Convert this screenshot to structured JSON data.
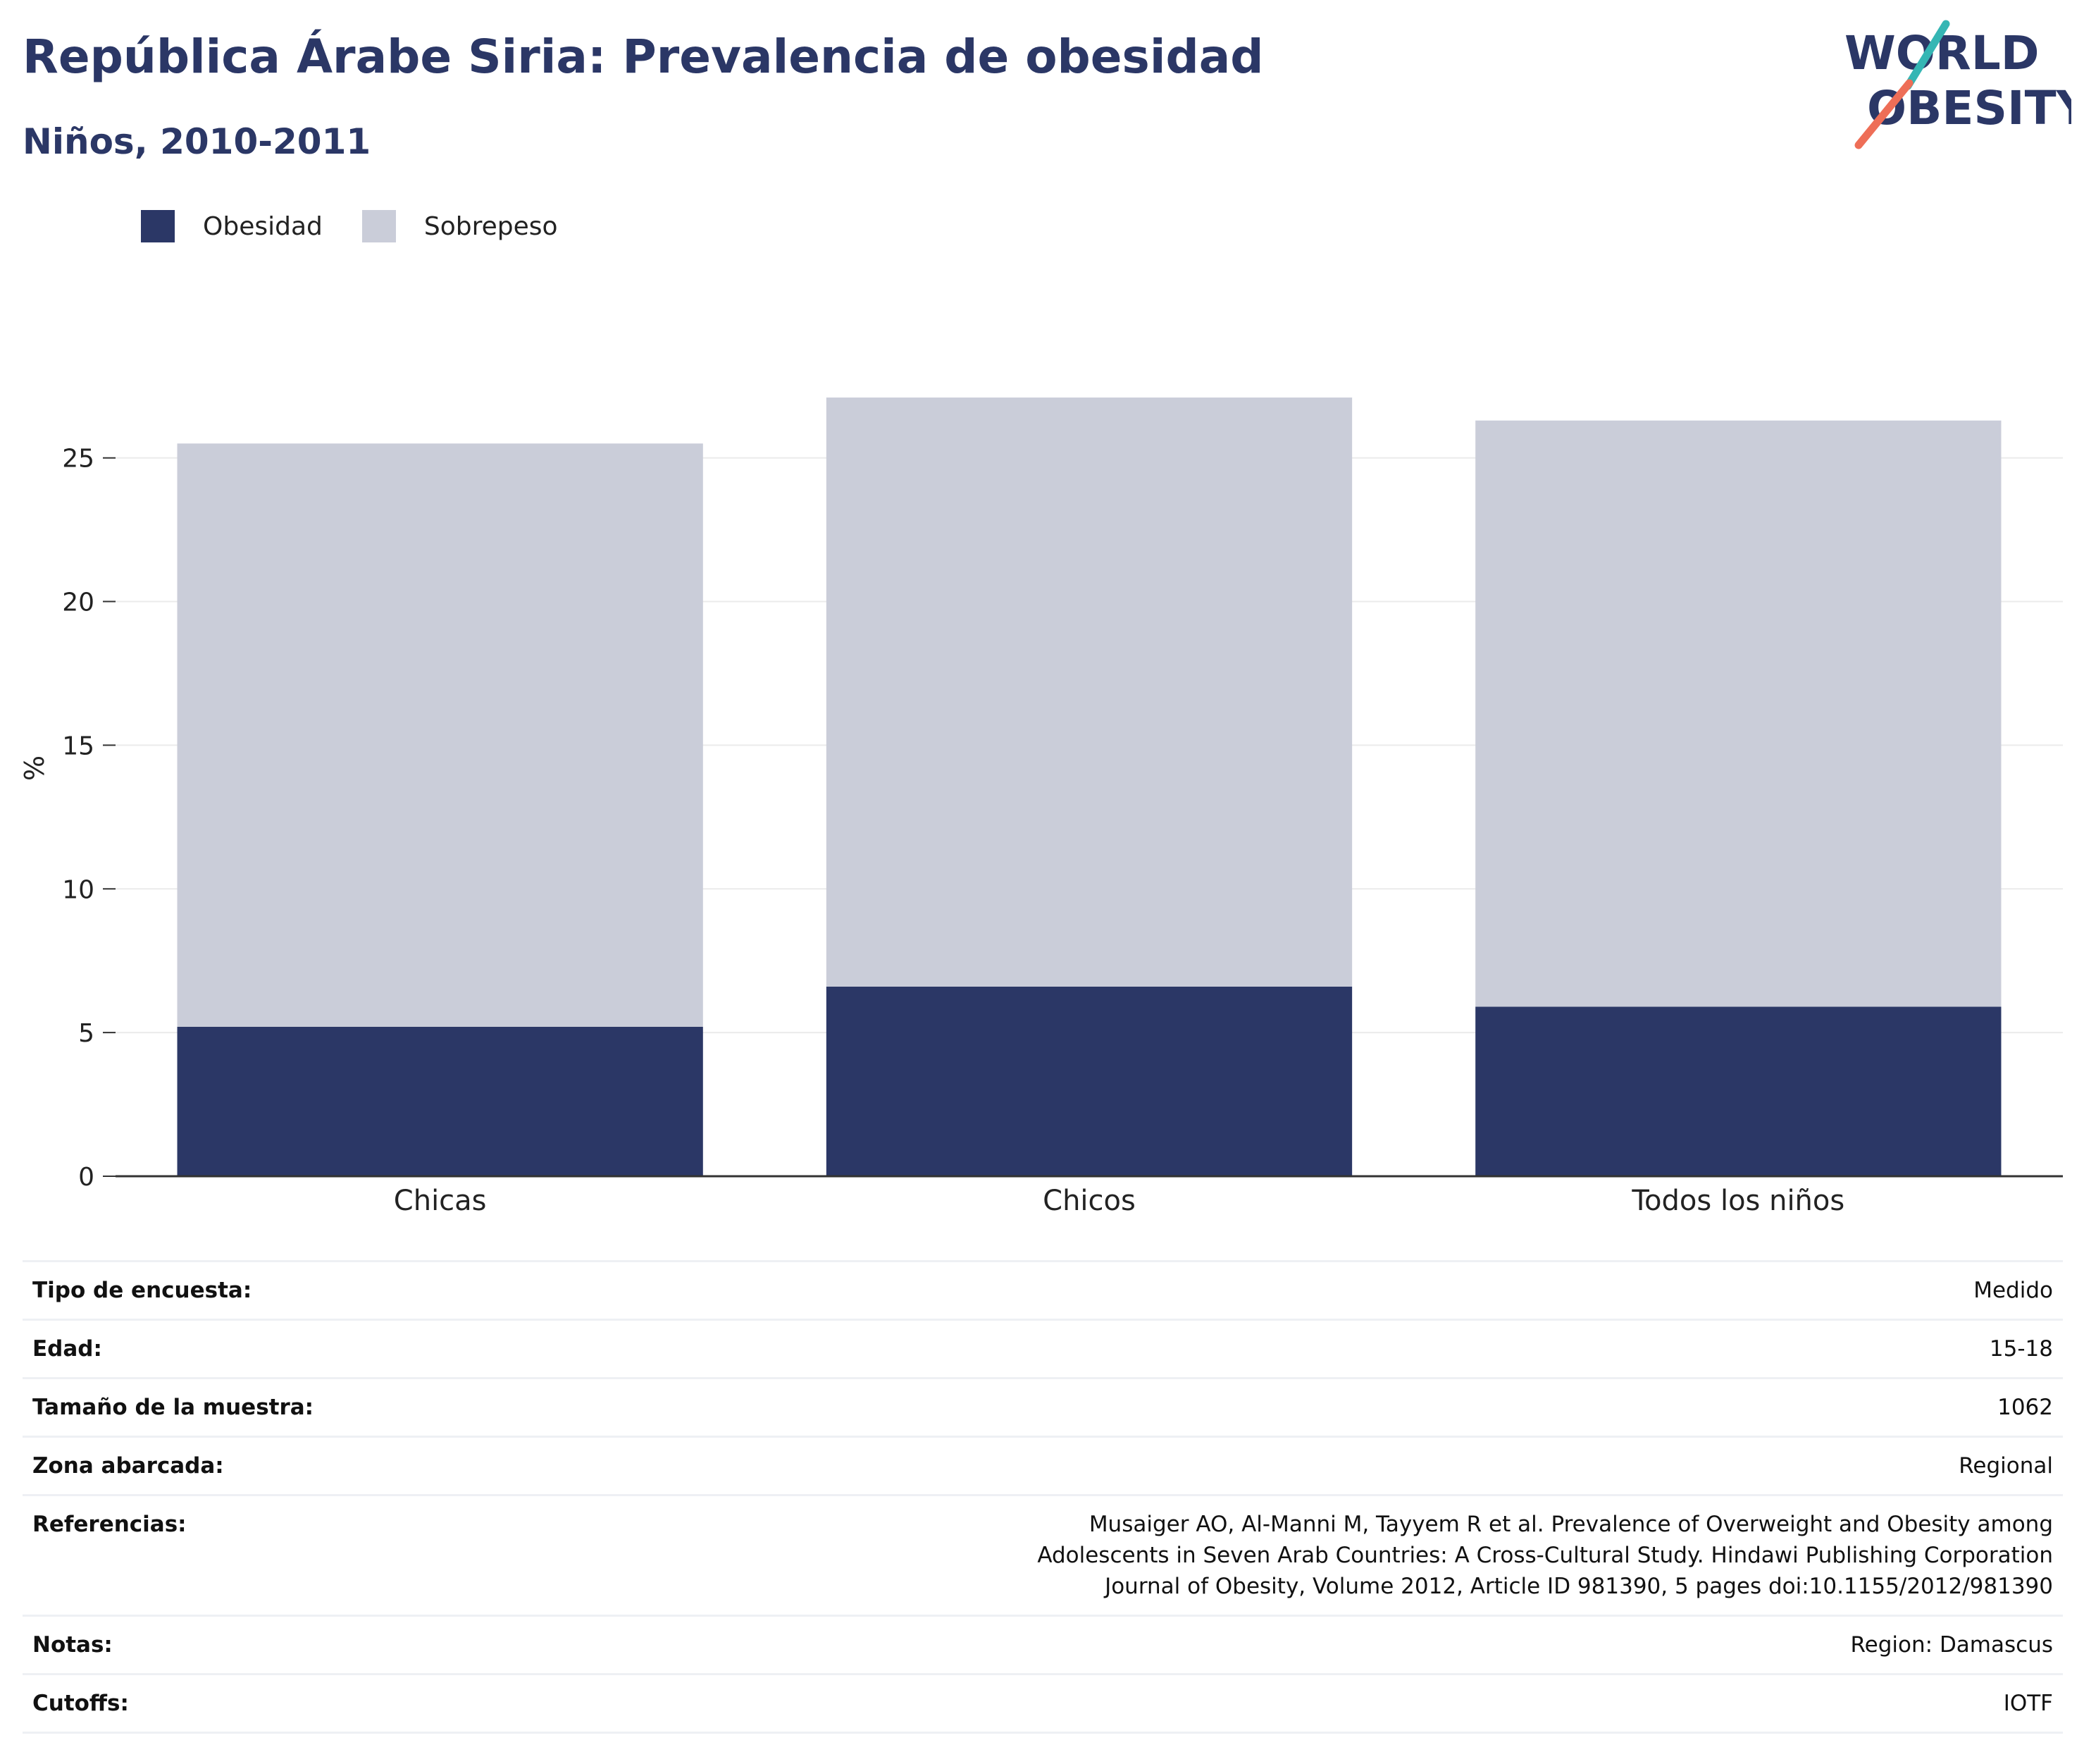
{
  "header": {
    "title": "República Árabe Siria: Prevalencia de obesidad",
    "subtitle": "Niños, 2010-2011",
    "logo_line1": "WORLD",
    "logo_line2": "OBESITY"
  },
  "colors": {
    "obesity": "#2b3766",
    "overweight": "#cacdd9",
    "title": "#2b3766",
    "logo_teal": "#35b6b4",
    "logo_coral": "#ee6e57"
  },
  "legend": {
    "items": [
      {
        "label": "Obesidad",
        "color": "#2b3766"
      },
      {
        "label": "Sobrepeso",
        "color": "#cacdd9"
      }
    ]
  },
  "chart_data": {
    "type": "bar",
    "stacked": true,
    "categories": [
      "Chicas",
      "Chicos",
      "Todos los niños"
    ],
    "series": [
      {
        "name": "Obesidad",
        "values": [
          5.2,
          6.6,
          5.9
        ]
      },
      {
        "name": "Sobrepeso",
        "values": [
          20.3,
          20.5,
          20.4
        ]
      }
    ],
    "ylabel": "%",
    "ylim": [
      0,
      27.2
    ],
    "yticks": [
      0,
      5,
      10,
      15,
      20,
      25
    ],
    "grid": true,
    "legend_position": "top-left"
  },
  "metadata": {
    "rows": [
      {
        "key": "Tipo de encuesta:",
        "value": "Medido"
      },
      {
        "key": "Edad:",
        "value": "15-18"
      },
      {
        "key": "Tamaño de la muestra:",
        "value": "1062"
      },
      {
        "key": "Zona abarcada:",
        "value": "Regional"
      },
      {
        "key": "Referencias:",
        "value": "Musaiger AO, Al-Manni M, Tayyem R et al. Prevalence of Overweight and Obesity among Adolescents in Seven Arab Countries: A Cross-Cultural Study. Hindawi Publishing Corporation Journal of Obesity, Volume 2012, Article ID 981390, 5 pages doi:10.1155/2012/981390"
      },
      {
        "key": "Notas:",
        "value": "Region: Damascus"
      },
      {
        "key": "Cutoffs:",
        "value": "IOTF"
      }
    ]
  }
}
